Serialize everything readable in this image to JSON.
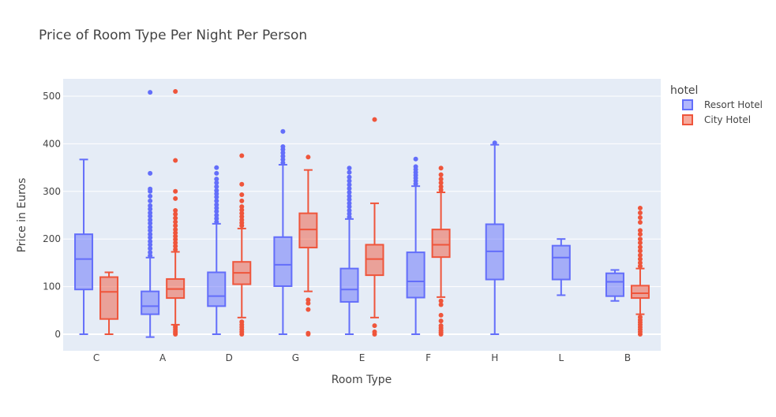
{
  "chart_data": {
    "type": "box",
    "title": "Price of Room Type Per Night Per Person",
    "xlabel": "Room Type",
    "ylabel": "Price in Euros",
    "categories": [
      "C",
      "A",
      "D",
      "G",
      "E",
      "F",
      "H",
      "L",
      "B"
    ],
    "ylim": [
      -35,
      545
    ],
    "yticks": [
      0,
      100,
      200,
      300,
      400,
      500
    ],
    "grid": true,
    "legend": {
      "title": "hotel",
      "placement": "top-right",
      "items": [
        "Resort Hotel",
        "City Hotel"
      ]
    },
    "series": [
      {
        "name": "Resort Hotel",
        "color": "#636efa",
        "fill": "rgba(99,110,250,0.5)",
        "boxes": [
          {
            "category": "C",
            "lowerfence": 0,
            "q1": 94,
            "median": 158,
            "q3": 210,
            "upperfence": 367,
            "outliers": []
          },
          {
            "category": "A",
            "lowerfence": -6,
            "q1": 42,
            "median": 59,
            "q3": 90,
            "upperfence": 161,
            "outliers": [
              165,
              172,
              180,
              188,
              195,
              203,
              210,
              218,
              225,
              233,
              240,
              248,
              255,
              263,
              270,
              280,
              290,
              300,
              305,
              338,
              508
            ]
          },
          {
            "category": "D",
            "lowerfence": 0,
            "q1": 59,
            "median": 80,
            "q3": 130,
            "upperfence": 232,
            "outliers": [
              236,
              243,
              250,
              258,
              265,
              272,
              280,
              288,
              295,
              302,
              310,
              318,
              326,
              338,
              350
            ]
          },
          {
            "category": "G",
            "lowerfence": 0,
            "q1": 101,
            "median": 146,
            "q3": 204,
            "upperfence": 356,
            "outliers": [
              360,
              367,
              374,
              381,
              388,
              394,
              426
            ]
          },
          {
            "category": "E",
            "lowerfence": 0,
            "q1": 68,
            "median": 94,
            "q3": 138,
            "upperfence": 242,
            "outliers": [
              246,
              253,
              260,
              268,
              275,
              283,
              290,
              298,
              306,
              314,
              322,
              330,
              340,
              349
            ]
          },
          {
            "category": "F",
            "lowerfence": 0,
            "q1": 77,
            "median": 111,
            "q3": 172,
            "upperfence": 311,
            "outliers": [
              316,
              322,
              328,
              334,
              340,
              346,
              352,
              368
            ]
          },
          {
            "category": "H",
            "lowerfence": 0,
            "q1": 115,
            "median": 174,
            "q3": 231,
            "upperfence": 398,
            "outliers": [
              402
            ]
          },
          {
            "category": "L",
            "lowerfence": 82,
            "q1": 115,
            "median": 161,
            "q3": 186,
            "upperfence": 200,
            "outliers": []
          },
          {
            "category": "B",
            "lowerfence": 70,
            "q1": 80,
            "median": 110,
            "q3": 128,
            "upperfence": 135,
            "outliers": []
          }
        ]
      },
      {
        "name": "City Hotel",
        "color": "#ef553b",
        "fill": "rgba(239,85,59,0.5)",
        "boxes": [
          {
            "category": "C",
            "lowerfence": 0,
            "q1": 32,
            "median": 89,
            "q3": 120,
            "upperfence": 130,
            "outliers": []
          },
          {
            "category": "A",
            "lowerfence": 20,
            "q1": 76,
            "median": 95,
            "q3": 116,
            "upperfence": 173,
            "outliers": [
              0,
              3,
              6,
              10,
              14,
              17,
              178,
              185,
              192,
              199,
              206,
              213,
              220,
              228,
              236,
              244,
              252,
              260,
              285,
              300,
              365,
              510
            ]
          },
          {
            "category": "D",
            "lowerfence": 35,
            "q1": 105,
            "median": 129,
            "q3": 152,
            "upperfence": 222,
            "outliers": [
              0,
              5,
              10,
              15,
              20,
              26,
              228,
              234,
              240,
              247,
              254,
              261,
              268,
              280,
              293,
              315,
              375
            ]
          },
          {
            "category": "G",
            "lowerfence": 90,
            "q1": 182,
            "median": 220,
            "q3": 254,
            "upperfence": 345,
            "outliers": [
              0,
              2,
              52,
              65,
              72,
              372
            ]
          },
          {
            "category": "E",
            "lowerfence": 35,
            "q1": 124,
            "median": 158,
            "q3": 188,
            "upperfence": 275,
            "outliers": [
              0,
              5,
              18,
              451
            ]
          },
          {
            "category": "F",
            "lowerfence": 78,
            "q1": 162,
            "median": 188,
            "q3": 220,
            "upperfence": 298,
            "outliers": [
              0,
              4,
              8,
              13,
              18,
              28,
              40,
              62,
              70,
              303,
              310,
              318,
              326,
              335,
              349
            ]
          },
          {
            "category": "B",
            "lowerfence": 42,
            "q1": 76,
            "median": 86,
            "q3": 102,
            "upperfence": 138,
            "outliers": [
              0,
              5,
              10,
              15,
              20,
              25,
              30,
              36,
              143,
              150,
              158,
              166,
              175,
              183,
              192,
              200,
              210,
              218,
              235,
              245,
              255,
              265
            ]
          }
        ]
      }
    ]
  }
}
